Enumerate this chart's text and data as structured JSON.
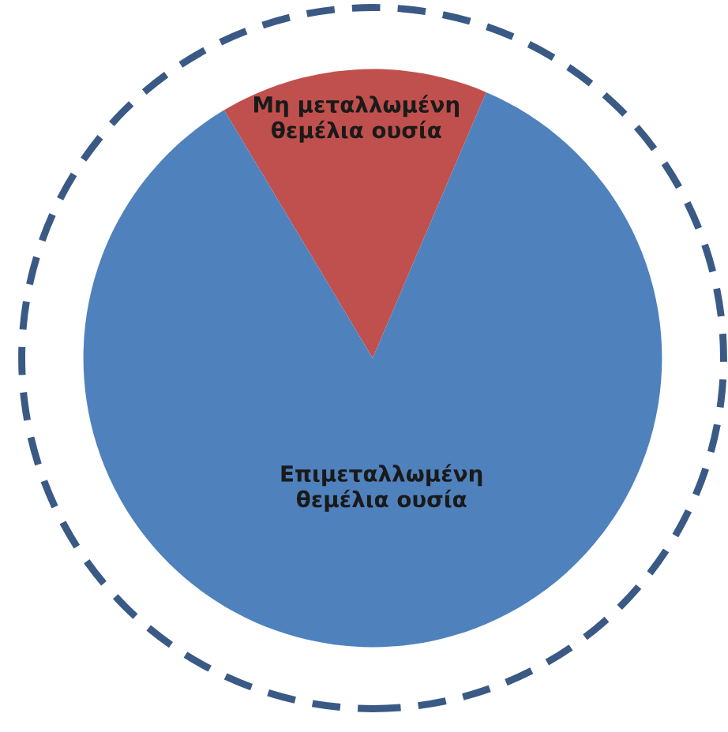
{
  "chart_data": {
    "type": "pie",
    "categories": [
      "Μη μεταλλωμένη\nθεμέλια ουσία",
      "Επιμεταλλωμένη\nθεμέλια ουσία"
    ],
    "values": [
      15,
      85
    ],
    "colors": [
      "#c0504d",
      "#4f81bd"
    ],
    "legend": false
  }
}
